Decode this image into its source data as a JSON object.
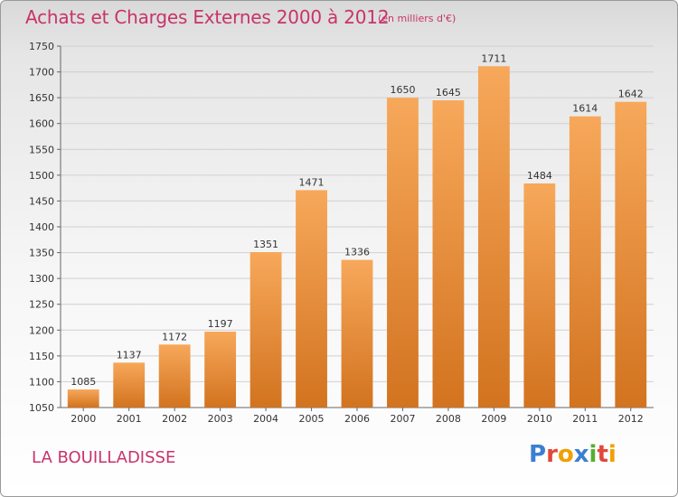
{
  "title": "Achats et Charges Externes 2000 à 2012",
  "unit_note": "(en milliers d'€)",
  "commune": "LA BOUILLADISSE",
  "logo": {
    "text": "Proxiti",
    "letters": [
      {
        "ch": "P",
        "color": "#3a7fd1"
      },
      {
        "ch": "r",
        "color": "#e0483a"
      },
      {
        "ch": "o",
        "color": "#f0a000"
      },
      {
        "ch": "x",
        "color": "#3a7fd1"
      },
      {
        "ch": "i",
        "color": "#55b030"
      },
      {
        "ch": "t",
        "color": "#e0483a"
      },
      {
        "ch": "i",
        "color": "#f0a000"
      }
    ]
  },
  "colors": {
    "bar_light": "#f7a85a",
    "bar_dark": "#d2731f",
    "title": "#c8336a",
    "axis_text": "#333333"
  },
  "chart_data": {
    "type": "bar",
    "title": "Achats et Charges Externes 2000 à 2012",
    "subtitle": "(en milliers d'€)",
    "categories": [
      "2000",
      "2001",
      "2002",
      "2003",
      "2004",
      "2005",
      "2006",
      "2007",
      "2008",
      "2009",
      "2010",
      "2011",
      "2012"
    ],
    "values": [
      1085,
      1137,
      1172,
      1197,
      1351,
      1471,
      1336,
      1650,
      1645,
      1711,
      1484,
      1614,
      1642
    ],
    "ylim": [
      1050,
      1750
    ],
    "yticks": [
      1050,
      1100,
      1150,
      1200,
      1250,
      1300,
      1350,
      1400,
      1450,
      1500,
      1550,
      1600,
      1650,
      1700,
      1750
    ],
    "grid": true,
    "xlabel": "",
    "ylabel": ""
  }
}
